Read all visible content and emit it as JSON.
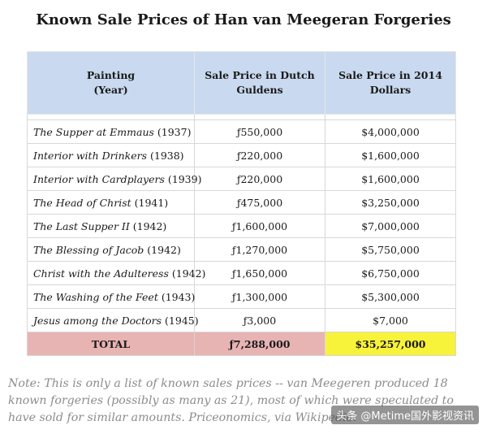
{
  "title": "Known Sale Prices of Han van Meegeran Forgeries",
  "table": {
    "headers": [
      [
        "Painting",
        "(Year)"
      ],
      [
        "Sale Price in Dutch",
        "Guldens"
      ],
      [
        "Sale Price in 2014",
        "Dollars"
      ]
    ],
    "rows": [
      {
        "painting": "The Supper at Emmaus",
        "year": " (1937)",
        "guldens": "ƒ550,000",
        "dollars": "$4,000,000"
      },
      {
        "painting": "Interior with Drinkers",
        "year": " (1938)",
        "guldens": "ƒ220,000",
        "dollars": "$1,600,000"
      },
      {
        "painting": "Interior with Cardplayers",
        "year": " (1939)",
        "guldens": "ƒ220,000",
        "dollars": "$1,600,000"
      },
      {
        "painting": "The Head of Christ",
        "year": " (1941)",
        "guldens": "ƒ475,000",
        "dollars": "$3,250,000"
      },
      {
        "painting": "The Last Supper II",
        "year": " (1942)",
        "guldens": "ƒ1,600,000",
        "dollars": "$7,000,000"
      },
      {
        "painting": "The Blessing of Jacob",
        "year": " (1942)",
        "guldens": "ƒ1,270,000",
        "dollars": "$5,750,000"
      },
      {
        "painting": "Christ with the Adulteress",
        "year": " (1942)",
        "guldens": "ƒ1,650,000",
        "dollars": "$6,750,000"
      },
      {
        "painting": "The Washing of the Feet",
        "year": " (1943)",
        "guldens": "ƒ1,300,000",
        "dollars": "$5,300,000"
      },
      {
        "painting": "Jesus among the Doctors",
        "year": " (1945)",
        "guldens": "ƒ3,000",
        "dollars": "$7,000"
      }
    ],
    "total": {
      "label": "TOTAL",
      "guldens": "ƒ7,288,000",
      "dollars": "$35,257,000"
    }
  },
  "note": "Note: This is only a list of known sales prices -- van Meegeren produced 18 known forgeries (possibly as many as 21), most of which were speculated to have sold for similar amounts. Priceonomics, via Wikipedia.",
  "watermark": "头条 @Metime国外影视资讯",
  "colors": {
    "header_bg": "#c9d9ef",
    "total_label_bg": "#e8b3b3",
    "total_guldens_bg": "#e8b3b3",
    "total_dollars_bg": "#f7f23a",
    "note_text": "#8c8c8c"
  }
}
